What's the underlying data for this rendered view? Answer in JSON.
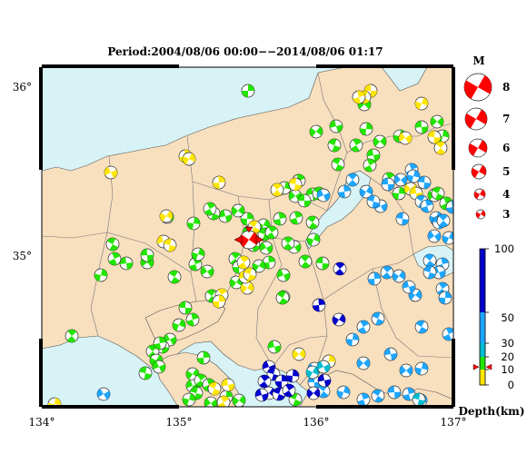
{
  "title": "Period:2004/08/06 00:00−−2014/08/06 01:17",
  "lat_labels": [
    "36°",
    "35°"
  ],
  "lon_labels": [
    "134°",
    "135°",
    "136°",
    "137°"
  ],
  "magnitude_legend": {
    "header": "M",
    "magnitudes": [
      "8",
      "7",
      "6",
      "5",
      "4",
      "3"
    ]
  },
  "depth_scale": {
    "label": "Depth(km)",
    "ticks": [
      "100",
      "50",
      "30",
      "20",
      "10",
      "0"
    ],
    "marked_depth_km": 12
  },
  "colors": {
    "sea": "#d8f3f6",
    "land": "#f8dfbe",
    "depth_0_10": "#ffe600",
    "depth_10_20": "#22e600",
    "depth_20_30": "#00bcd0",
    "depth_30_50": "#1ea6ff",
    "depth_50_100": "#0000cc",
    "mainshock": "#ff0000"
  },
  "mainshock": {
    "lon": 135.47,
    "lat": 35.1,
    "mag": 5.5
  }
}
